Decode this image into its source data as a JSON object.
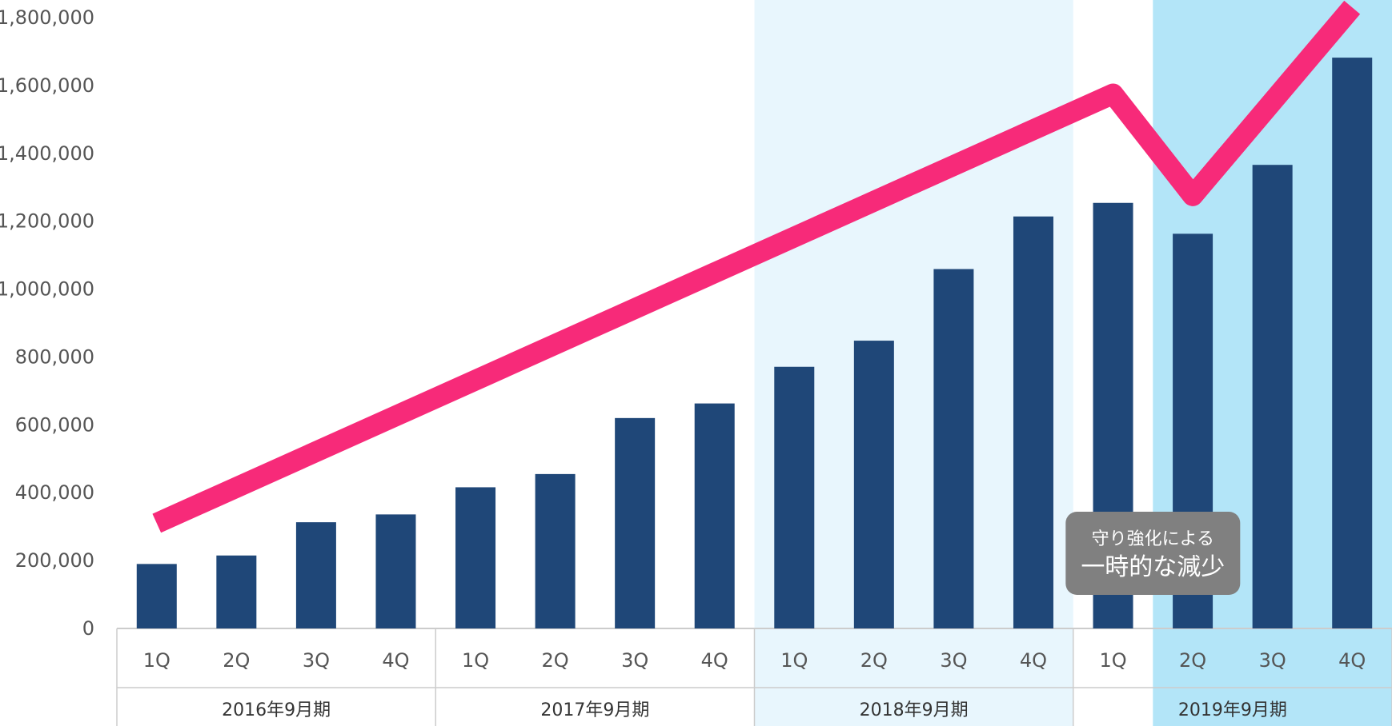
{
  "chart_data": {
    "type": "bar",
    "ylim": [
      0,
      1800000
    ],
    "y_ticks": [
      "0",
      "200,000",
      "400,000",
      "600,000",
      "800,000",
      "1,000,000",
      "1,200,000",
      "1,400,000",
      "1,600,000",
      "1,800,000"
    ],
    "categories": [
      "1Q",
      "2Q",
      "3Q",
      "4Q",
      "1Q",
      "2Q",
      "3Q",
      "4Q",
      "1Q",
      "2Q",
      "3Q",
      "4Q",
      "1Q",
      "2Q",
      "3Q",
      "4Q"
    ],
    "periods": [
      {
        "label": "2016年9月期",
        "highlight": "none"
      },
      {
        "label": "2017年9月期",
        "highlight": "none"
      },
      {
        "label": "2018年9月期",
        "highlight": "light"
      },
      {
        "label": "2019年9月期",
        "highlight": "strong"
      }
    ],
    "series": [
      {
        "type": "bar",
        "color": "#1f4778",
        "values": [
          190000,
          215000,
          313000,
          336000,
          416000,
          455000,
          620000,
          663000,
          771000,
          848000,
          1059000,
          1214000,
          1254000,
          1163000,
          1366000,
          1682000
        ]
      }
    ],
    "trend_line": {
      "color": "#f72a79",
      "points": [
        {
          "index": 0,
          "value": 310000
        },
        {
          "index": 12,
          "value": 1575000
        },
        {
          "index": 13,
          "value": 1275000
        },
        {
          "index": 15,
          "value": 1830000
        }
      ]
    },
    "grid": false,
    "highlight_colors": {
      "light": "#e8f6fd",
      "strong": "#b3e5f8"
    },
    "callout": {
      "line1": "守り強化による",
      "line2": "一時的な減少",
      "background": "#808080",
      "anchor_index": 13
    }
  }
}
